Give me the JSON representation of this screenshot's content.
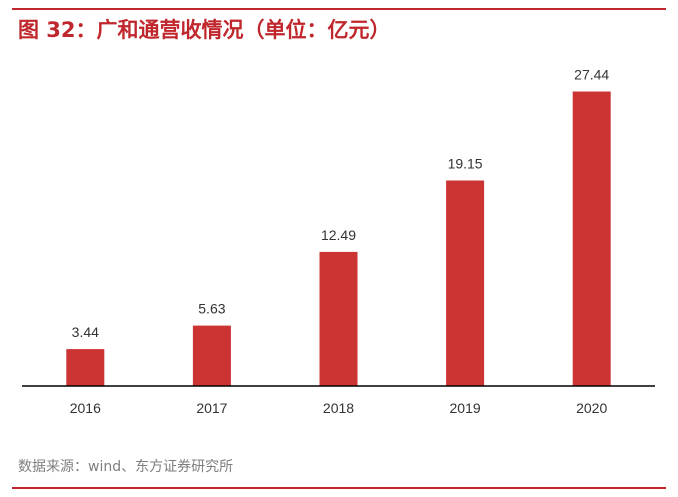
{
  "title": "图 32：广和通营收情况（单位：亿元）",
  "source": "数据来源：wind、东方证券研究所",
  "colors": {
    "accent": "#c0272d",
    "bar": "#cc3333",
    "axis": "#000000",
    "text": "#333333",
    "source_text": "#7f7f7f"
  },
  "chart_data": {
    "type": "bar",
    "title": "图 32：广和通营收情况（单位：亿元）",
    "categories": [
      "2016",
      "2017",
      "2018",
      "2019",
      "2020"
    ],
    "values": [
      3.44,
      5.63,
      12.49,
      19.15,
      27.44
    ],
    "value_labels": [
      "3.44",
      "5.63",
      "12.49",
      "19.15",
      "27.44"
    ],
    "xlabel": "",
    "ylabel": "",
    "ylim": [
      0,
      30
    ],
    "grid": false,
    "legend": "none"
  }
}
